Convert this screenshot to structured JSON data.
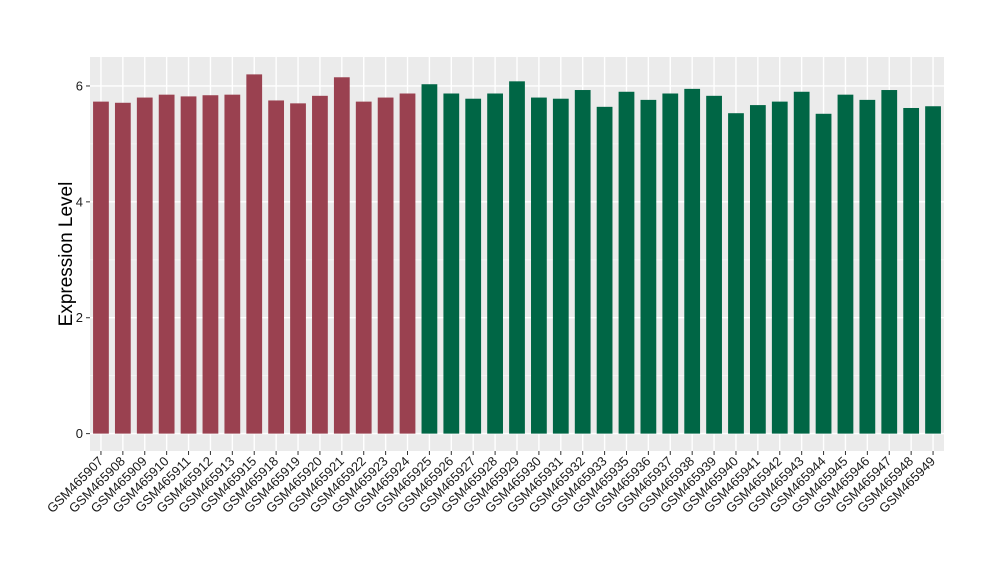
{
  "chart_data": {
    "type": "bar",
    "ylabel": "Expression Level",
    "xlabel": "",
    "ylim": [
      -0.3,
      6.5
    ],
    "yticks": [
      0,
      2,
      4,
      6
    ],
    "grid": true,
    "background": "#ebebeb",
    "categories": [
      "GSM465907",
      "GSM465908",
      "GSM465909",
      "GSM465910",
      "GSM465911",
      "GSM465912",
      "GSM465913",
      "GSM465915",
      "GSM465918",
      "GSM465919",
      "GSM465920",
      "GSM465921",
      "GSM465922",
      "GSM465923",
      "GSM465924",
      "GSM465925",
      "GSM465926",
      "GSM465927",
      "GSM465928",
      "GSM465929",
      "GSM465930",
      "GSM465931",
      "GSM465932",
      "GSM465933",
      "GSM465935",
      "GSM465936",
      "GSM465937",
      "GSM465938",
      "GSM465939",
      "GSM465940",
      "GSM465941",
      "GSM465942",
      "GSM465943",
      "GSM465944",
      "GSM465945",
      "GSM465946",
      "GSM465947",
      "GSM465948",
      "GSM465949"
    ],
    "values": [
      5.73,
      5.71,
      5.8,
      5.85,
      5.82,
      5.84,
      5.85,
      6.2,
      5.75,
      5.7,
      5.83,
      6.15,
      5.73,
      5.8,
      5.87,
      6.03,
      5.87,
      5.78,
      5.87,
      6.08,
      5.8,
      5.78,
      5.93,
      5.64,
      5.9,
      5.76,
      5.87,
      5.95,
      5.83,
      5.53,
      5.67,
      5.73,
      5.9,
      5.52,
      5.85,
      5.76,
      5.93,
      5.62,
      5.65
    ],
    "group_sizes": [
      15,
      24
    ],
    "colors": [
      "#9a4150",
      "#006645"
    ]
  }
}
